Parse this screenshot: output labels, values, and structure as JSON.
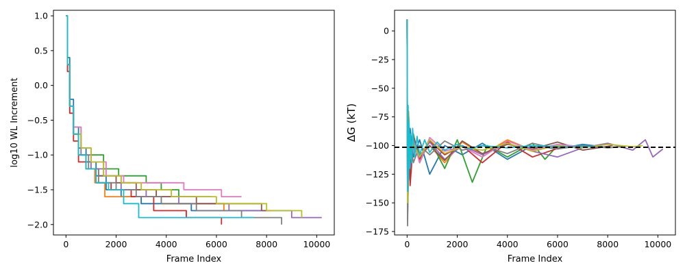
{
  "chart_data": [
    {
      "type": "line",
      "title": "",
      "xlabel": "Frame Index",
      "ylabel": "log10 WL Increment",
      "xlim": [
        -500,
        10700
      ],
      "ylim": [
        -2.15,
        1.08
      ],
      "xticks": [
        0,
        2000,
        4000,
        6000,
        8000,
        10000
      ],
      "xtick_labels": [
        "0",
        "2000",
        "4000",
        "6000",
        "8000",
        "10000"
      ],
      "yticks": [
        1.0,
        0.5,
        0.0,
        -0.5,
        -1.0,
        -1.5,
        -2.0
      ],
      "ytick_labels": [
        "1.0",
        "0.5",
        "0.0",
        "−0.5",
        "−1.0",
        "−1.5",
        "−2.0"
      ],
      "grid": false,
      "legend": "none",
      "series_style": "step",
      "series": [
        {
          "color": "#1f77b4",
          "x": [
            0,
            60,
            150,
            300,
            500,
            800,
            1200,
            1600,
            2200,
            3000,
            5000,
            7800
          ],
          "y": [
            1.0,
            0.4,
            -0.2,
            -0.6,
            -0.9,
            -1.1,
            -1.3,
            -1.5,
            -1.6,
            -1.7,
            -1.8,
            -1.8
          ]
        },
        {
          "color": "#ff7f0e",
          "x": [
            0,
            60,
            150,
            300,
            500,
            800,
            1150,
            1550,
            2600,
            3800,
            5500,
            6300
          ],
          "y": [
            1.0,
            0.3,
            -0.3,
            -0.7,
            -1.0,
            -1.2,
            -1.4,
            -1.6,
            -1.6,
            -1.7,
            -1.7,
            -1.8
          ]
        },
        {
          "color": "#2ca02c",
          "x": [
            0,
            60,
            150,
            300,
            600,
            1000,
            1500,
            2100,
            3200,
            3800,
            4500,
            5800
          ],
          "y": [
            1.0,
            0.3,
            -0.3,
            -0.6,
            -0.9,
            -1.0,
            -1.2,
            -1.3,
            -1.4,
            -1.5,
            -1.6,
            -1.6
          ]
        },
        {
          "color": "#d62728",
          "x": [
            0,
            60,
            150,
            300,
            500,
            800,
            1200,
            1800,
            2600,
            3500,
            4800,
            6200
          ],
          "y": [
            1.0,
            0.2,
            -0.4,
            -0.8,
            -1.1,
            -1.2,
            -1.4,
            -1.5,
            -1.6,
            -1.8,
            -1.9,
            -2.0
          ]
        },
        {
          "color": "#9467bd",
          "x": [
            0,
            60,
            150,
            300,
            600,
            1000,
            1500,
            2200,
            3200,
            4500,
            6500,
            9000,
            10200
          ],
          "y": [
            1.0,
            0.3,
            -0.3,
            -0.7,
            -1.0,
            -1.2,
            -1.3,
            -1.5,
            -1.6,
            -1.7,
            -1.8,
            -1.9,
            -1.9
          ]
        },
        {
          "color": "#8c564b",
          "x": [
            0,
            60,
            150,
            300,
            500,
            800,
            1300,
            2000,
            2800,
            3600,
            5200,
            7800,
            8200
          ],
          "y": [
            1.0,
            0.3,
            -0.3,
            -0.7,
            -1.0,
            -1.2,
            -1.3,
            -1.4,
            -1.5,
            -1.6,
            -1.7,
            -1.8,
            -1.8
          ]
        },
        {
          "color": "#e377c2",
          "x": [
            0,
            60,
            150,
            300,
            600,
            1000,
            1600,
            2300,
            3200,
            4700,
            6200,
            7000
          ],
          "y": [
            1.0,
            0.3,
            -0.3,
            -0.6,
            -0.9,
            -1.1,
            -1.3,
            -1.4,
            -1.4,
            -1.5,
            -1.6,
            -1.6
          ]
        },
        {
          "color": "#7f7f7f",
          "x": [
            0,
            60,
            150,
            300,
            500,
            900,
            1300,
            2000,
            2800,
            3800,
            5200,
            7000,
            8600
          ],
          "y": [
            1.0,
            0.3,
            -0.3,
            -0.7,
            -1.0,
            -1.2,
            -1.4,
            -1.5,
            -1.6,
            -1.7,
            -1.8,
            -1.9,
            -2.0
          ]
        },
        {
          "color": "#bcbd22",
          "x": [
            0,
            60,
            150,
            300,
            600,
            1000,
            1500,
            2200,
            3000,
            4200,
            6000,
            8000,
            9400
          ],
          "y": [
            1.0,
            0.3,
            -0.3,
            -0.7,
            -0.9,
            -1.1,
            -1.3,
            -1.4,
            -1.5,
            -1.6,
            -1.7,
            -1.8,
            -1.9
          ]
        },
        {
          "color": "#17becf",
          "x": [
            0,
            60,
            150,
            300,
            500,
            800,
            1200,
            1700,
            2300,
            2900,
            5000,
            7500
          ],
          "y": [
            1.0,
            0.3,
            -0.3,
            -0.7,
            -1.0,
            -1.2,
            -1.4,
            -1.5,
            -1.7,
            -1.9,
            -1.9,
            -1.9
          ]
        }
      ]
    },
    {
      "type": "line",
      "title": "",
      "xlabel": "Frame Index",
      "ylabel": "ΔG (kT)",
      "xlim": [
        -500,
        10700
      ],
      "ylim": [
        -178,
        18
      ],
      "xticks": [
        0,
        2000,
        4000,
        6000,
        8000,
        10000
      ],
      "xtick_labels": [
        "0",
        "2000",
        "4000",
        "6000",
        "8000",
        "10000"
      ],
      "yticks": [
        0,
        -25,
        -50,
        -75,
        -100,
        -125,
        -150,
        -175
      ],
      "ytick_labels": [
        "0",
        "−25",
        "−50",
        "−75",
        "−100",
        "−125",
        "−150",
        "−175"
      ],
      "grid": false,
      "legend": "none",
      "reference_line": {
        "y": -101.5,
        "style": "dashed",
        "color": "#000000"
      },
      "series": [
        {
          "color": "#1f77b4",
          "x": [
            0,
            20,
            60,
            120,
            250,
            500,
            900,
            1500,
            2200,
            3000,
            4000,
            5000,
            6000,
            7000,
            7800
          ],
          "y": [
            10,
            -160,
            -120,
            -85,
            -110,
            -95,
            -125,
            -100,
            -108,
            -98,
            -112,
            -100,
            -103,
            -99,
            -101
          ]
        },
        {
          "color": "#ff7f0e",
          "x": [
            0,
            20,
            60,
            120,
            250,
            500,
            900,
            1500,
            2200,
            3000,
            4000,
            5000,
            6000,
            6300
          ],
          "y": [
            10,
            -150,
            -70,
            -118,
            -95,
            -110,
            -100,
            -115,
            -97,
            -108,
            -95,
            -104,
            -100,
            -102
          ]
        },
        {
          "color": "#2ca02c",
          "x": [
            0,
            20,
            60,
            120,
            250,
            500,
            900,
            1500,
            2000,
            2600,
            3200,
            4000,
            5000,
            5500,
            6000
          ],
          "y": [
            10,
            -140,
            -75,
            -125,
            -90,
            -115,
            -95,
            -120,
            -95,
            -132,
            -100,
            -110,
            -98,
            -112,
            -100
          ]
        },
        {
          "color": "#d62728",
          "x": [
            0,
            20,
            60,
            120,
            250,
            500,
            900,
            1500,
            2200,
            3000,
            4000,
            5000,
            5800,
            6200
          ],
          "y": [
            10,
            -155,
            -80,
            -135,
            -95,
            -112,
            -96,
            -108,
            -100,
            -115,
            -97,
            -110,
            -104,
            -101
          ]
        },
        {
          "color": "#9467bd",
          "x": [
            0,
            20,
            60,
            120,
            250,
            500,
            900,
            1500,
            2200,
            3000,
            4000,
            5000,
            6000,
            7000,
            8000,
            9000,
            9500,
            9800,
            10200
          ],
          "y": [
            10,
            -165,
            -90,
            -120,
            -100,
            -110,
            -97,
            -112,
            -100,
            -108,
            -98,
            -105,
            -110,
            -102,
            -98,
            -104,
            -95,
            -110,
            -103
          ]
        },
        {
          "color": "#8c564b",
          "x": [
            0,
            20,
            60,
            120,
            250,
            500,
            900,
            1500,
            2200,
            3000,
            4000,
            5000,
            6000,
            7000,
            8200
          ],
          "y": [
            10,
            -145,
            -95,
            -115,
            -92,
            -108,
            -100,
            -113,
            -96,
            -107,
            -99,
            -103,
            -97,
            -104,
            -100
          ]
        },
        {
          "color": "#e377c2",
          "x": [
            0,
            20,
            60,
            120,
            250,
            500,
            900,
            1500,
            2200,
            3000,
            4000,
            5000,
            6000,
            7000
          ],
          "y": [
            10,
            -160,
            -100,
            -110,
            -95,
            -115,
            -93,
            -105,
            -101,
            -110,
            -96,
            -104,
            -99,
            -101
          ]
        },
        {
          "color": "#7f7f7f",
          "x": [
            0,
            20,
            60,
            120,
            250,
            500,
            900,
            1500,
            2200,
            3000,
            4000,
            5000,
            6000,
            7000,
            8000,
            8600
          ],
          "y": [
            10,
            -170,
            -110,
            -95,
            -115,
            -100,
            -108,
            -96,
            -104,
            -100,
            -107,
            -98,
            -103,
            -100,
            -102,
            -101
          ]
        },
        {
          "color": "#bcbd22",
          "x": [
            0,
            20,
            60,
            120,
            250,
            500,
            900,
            1500,
            2200,
            3000,
            4000,
            5000,
            6000,
            7000,
            8000,
            9000,
            9400
          ],
          "y": [
            10,
            -150,
            -85,
            -112,
            -98,
            -110,
            -95,
            -107,
            -101,
            -104,
            -98,
            -105,
            -100,
            -102,
            -99,
            -101,
            -100
          ]
        },
        {
          "color": "#17becf",
          "x": [
            0,
            20,
            40,
            60,
            80,
            100,
            140,
            180,
            220,
            300,
            400,
            500,
            700,
            900,
            1200,
            1500,
            2000,
            2500,
            3000,
            4000,
            5000,
            6000,
            7500
          ],
          "y": [
            10,
            -140,
            -65,
            -130,
            -80,
            -120,
            -90,
            -115,
            -85,
            -110,
            -92,
            -108,
            -95,
            -106,
            -97,
            -104,
            -99,
            -103,
            -100,
            -102,
            -100,
            -101,
            -101
          ]
        }
      ]
    }
  ]
}
